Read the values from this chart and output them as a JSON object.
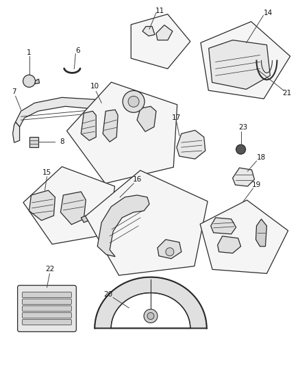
{
  "bg_color": "#ffffff",
  "line_color": "#2a2a2a",
  "figsize": [
    4.39,
    5.33
  ],
  "dpi": 100,
  "parts": {
    "label_fontsize": 7.5
  }
}
